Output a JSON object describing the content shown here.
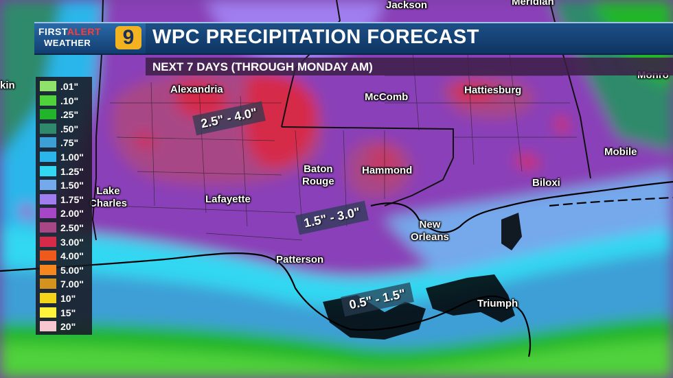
{
  "header": {
    "logo_first": "FIRST",
    "logo_alert": "ALERT",
    "logo_weather": "WEATHER",
    "logo_channel": "9",
    "title": "WPC PRECIPITATION FORECAST",
    "subtitle": "NEXT 7 DAYS (THROUGH MONDAY AM)"
  },
  "legend": {
    "items": [
      {
        "label": ".01\"",
        "color": "#8fe36b"
      },
      {
        "label": ".10\"",
        "color": "#4fd23a"
      },
      {
        "label": ".25\"",
        "color": "#22b52b"
      },
      {
        "label": ".50\"",
        "color": "#2e8a6a"
      },
      {
        "label": ".75\"",
        "color": "#3c9fd6"
      },
      {
        "label": "1.00\"",
        "color": "#2ab6ea"
      },
      {
        "label": "1.25\"",
        "color": "#32d7f2"
      },
      {
        "label": "1.50\"",
        "color": "#74a9ec"
      },
      {
        "label": "1.75\"",
        "color": "#a07ef0"
      },
      {
        "label": "2.00\"",
        "color": "#a846c8"
      },
      {
        "label": "2.50\"",
        "color": "#a84686"
      },
      {
        "label": "3.00\"",
        "color": "#d62a4a"
      },
      {
        "label": "4.00\"",
        "color": "#ef5a1c"
      },
      {
        "label": "5.00\"",
        "color": "#f7861e"
      },
      {
        "label": "7.00\"",
        "color": "#d4931e"
      },
      {
        "label": "10\"",
        "color": "#f2d41a"
      },
      {
        "label": "15\"",
        "color": "#fff23a"
      },
      {
        "label": "20\"",
        "color": "#f7c6cf"
      }
    ]
  },
  "cities": {
    "jackson": "Jackson",
    "meridian": "Meridian",
    "alexandria": "Alexandria",
    "mccomb": "McComb",
    "hattiesburg": "Hattiesburg",
    "mobile": "Mobile",
    "monroeville": "Monro",
    "baton_rouge_1": "Baton",
    "baton_rouge_2": "Rouge",
    "hammond": "Hammond",
    "biloxi": "Biloxi",
    "lake_charles_1": "Lake",
    "lake_charles_2": "Charles",
    "lafayette": "Lafayette",
    "new_orleans_1": "New",
    "new_orleans_2": "Orleans",
    "patterson": "Patterson",
    "triumph": "Triumph",
    "west_edge": "kin"
  },
  "ranges": {
    "north": "2.5\" - 4.0\"",
    "central": "1.5\" - 3.0\"",
    "coast": "0.5\" - 1.5\""
  }
}
